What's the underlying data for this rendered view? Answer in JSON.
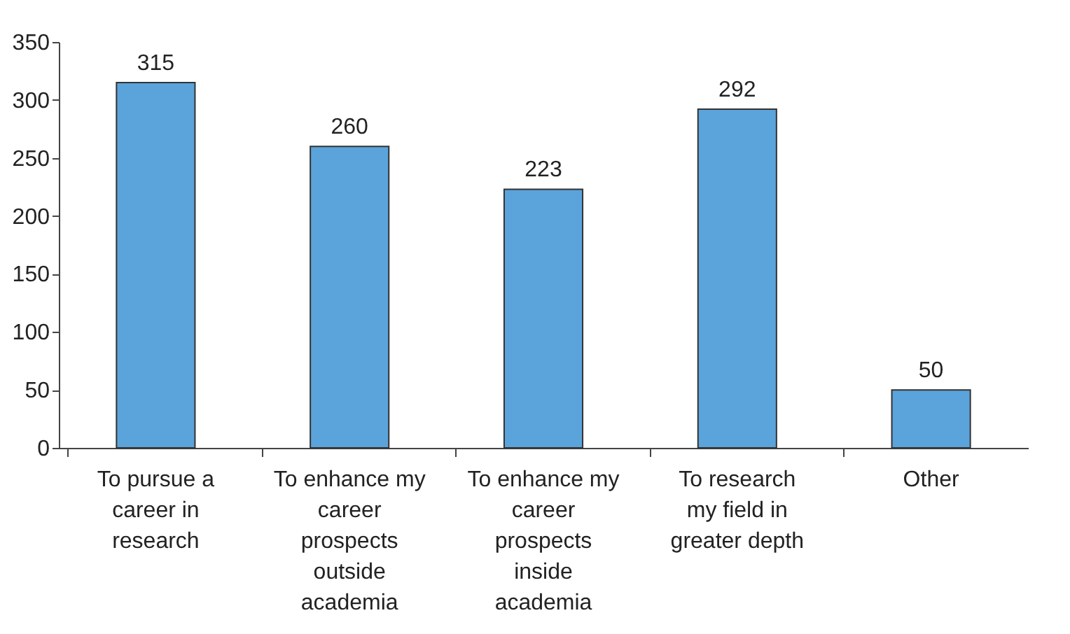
{
  "chart_data": {
    "type": "bar",
    "categories": [
      "To pursue a career in research",
      "To enhance my career prospects outside academia",
      "To enhance my career prospects inside academia",
      "To research my field in greater depth",
      "Other"
    ],
    "values": [
      315,
      260,
      223,
      292,
      50
    ],
    "color": "#5ba3db",
    "ylim": [
      0,
      350
    ],
    "yticks": [
      0,
      50,
      100,
      150,
      200,
      250,
      300,
      350
    ],
    "grid": false,
    "data_labels": true
  }
}
